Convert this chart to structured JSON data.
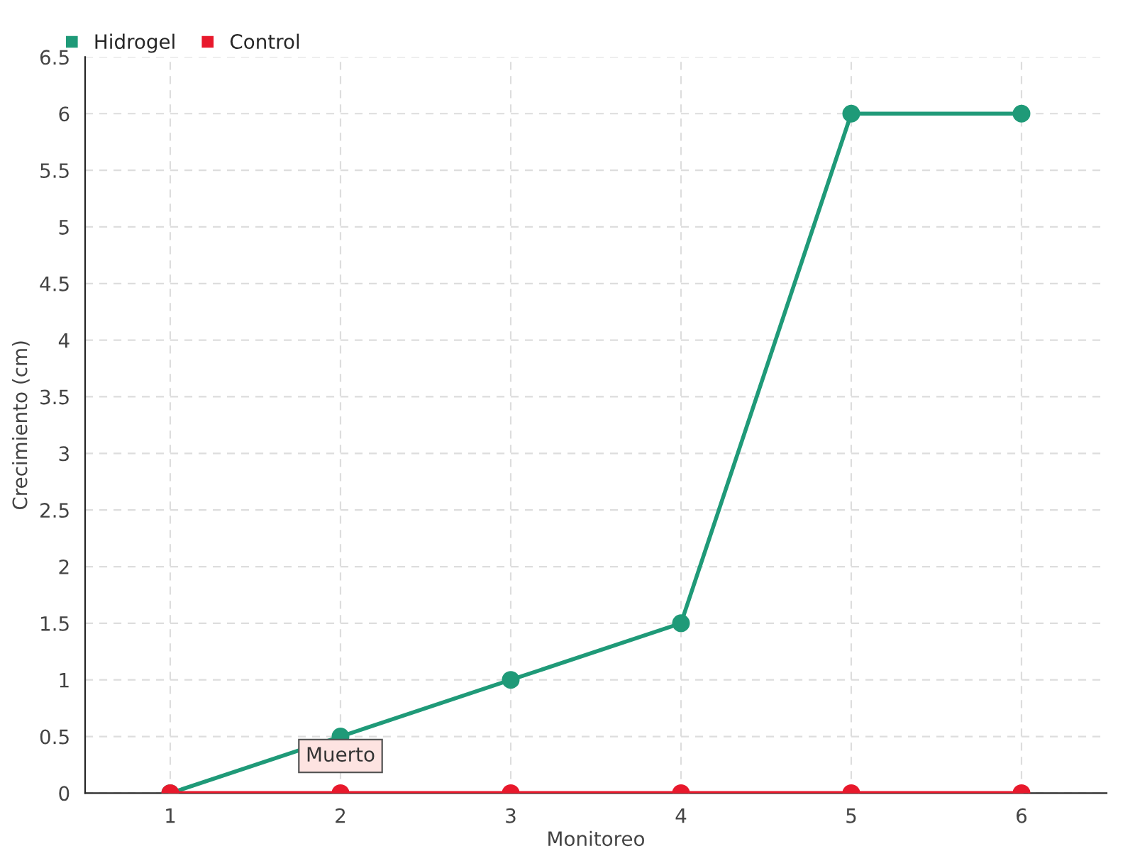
{
  "chart_data": {
    "type": "line",
    "xlabel": "Monitoreo",
    "ylabel": "Crecimiento (cm)",
    "x": [
      1,
      2,
      3,
      4,
      5,
      6
    ],
    "series": [
      {
        "name": "Hidrogel",
        "color": "#1f9a78",
        "values": [
          0,
          0.5,
          1,
          1.5,
          6,
          6
        ]
      },
      {
        "name": "Control",
        "color": "#e8192c",
        "values": [
          0,
          0,
          0,
          0,
          0,
          0
        ]
      }
    ],
    "xlim": [
      0.5,
      6.5
    ],
    "xticks": [
      1,
      2,
      3,
      4,
      5,
      6
    ],
    "ylim": [
      0,
      6.5
    ],
    "yticks": [
      0,
      0.5,
      1,
      1.5,
      2,
      2.5,
      3,
      3.5,
      4,
      4.5,
      5,
      5.5,
      6,
      6.5
    ],
    "annotations": [
      {
        "text": "Muerto",
        "x": 2,
        "y": 0
      }
    ],
    "grid": true,
    "legend": "top left",
    "marker": "circle",
    "line_style": "solid"
  }
}
